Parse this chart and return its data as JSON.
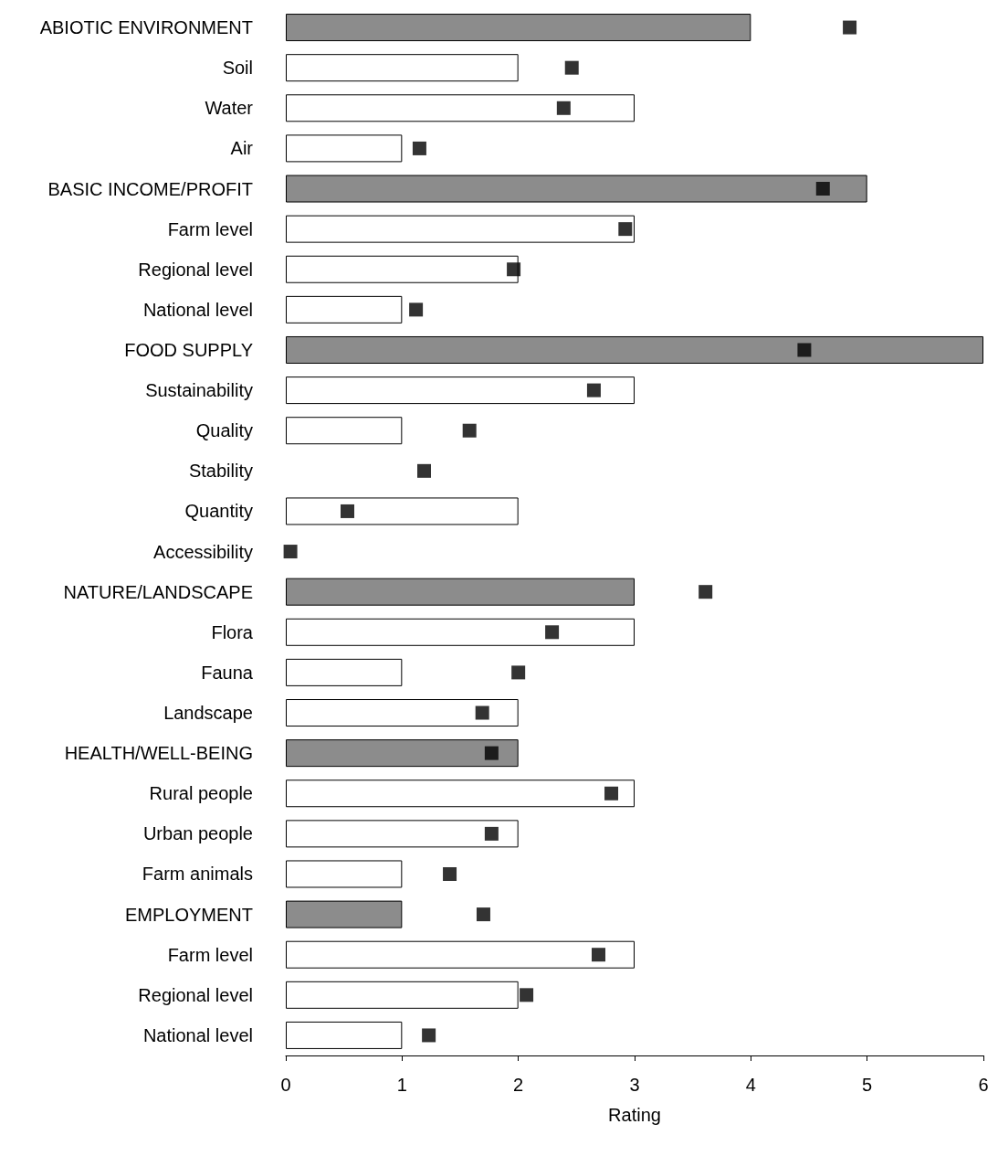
{
  "chart_data": {
    "type": "bar",
    "orientation": "horizontal",
    "xlabel": "Rating",
    "categories": [
      "ABIOTIC ENVIRONMENT",
      "Soil",
      "Water",
      "Air",
      "BASIC INCOME/PROFIT",
      "Farm level",
      "Regional level",
      "National level",
      "FOOD SUPPLY",
      "Sustainability",
      "Quality",
      "Stability",
      "Quantity",
      "Accessibility",
      "NATURE/LANDSCAPE",
      "Flora",
      "Fauna",
      "Landscape",
      "HEALTH/WELL-BEING",
      "Rural people",
      "Urban people",
      "Farm animals",
      "EMPLOYMENT",
      "Farm level",
      "Regional level",
      "National level"
    ],
    "series": [
      {
        "values": [
          4,
          2,
          3,
          1,
          5,
          3,
          2,
          1,
          6,
          3,
          1,
          0,
          2,
          0,
          3,
          3,
          1,
          2,
          2,
          3,
          2,
          1,
          1,
          3,
          2,
          1
        ],
        "colors": [
          "#8c8c8c",
          "#ffffff",
          "#ffffff",
          "#ffffff",
          "#8c8c8c",
          "#ffffff",
          "#ffffff",
          "#ffffff",
          "#8c8c8c",
          "#ffffff",
          "#ffffff",
          "#ffffff",
          "#ffffff",
          "#ffffff",
          "#8c8c8c",
          "#ffffff",
          "#ffffff",
          "#ffffff",
          "#8c8c8c",
          "#ffffff",
          "#ffffff",
          "#ffffff",
          "#8c8c8c",
          "#ffffff",
          "#ffffff",
          "#ffffff"
        ]
      },
      {
        "type": "scatter",
        "color": "#000000",
        "marker": "square",
        "values": [
          4.85,
          2.46,
          2.39,
          1.15,
          4.62,
          2.92,
          1.96,
          1.12,
          4.46,
          2.65,
          1.58,
          1.19,
          0.53,
          0.04,
          3.61,
          2.29,
          2.0,
          1.69,
          1.77,
          2.8,
          1.77,
          1.41,
          1.7,
          2.69,
          2.07,
          1.23
        ]
      }
    ],
    "xlim": [
      0,
      6
    ],
    "xticks": [
      0,
      1,
      2,
      3,
      4,
      5,
      6
    ],
    "grid": false
  }
}
